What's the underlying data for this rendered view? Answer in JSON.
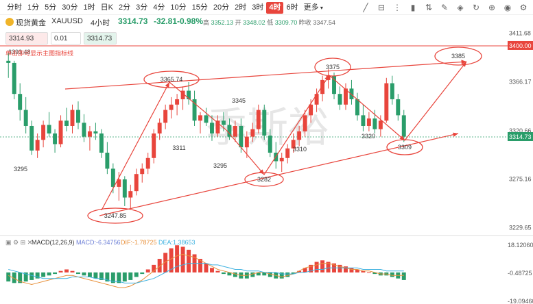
{
  "toolbar": {
    "timeframes": [
      "分时",
      "1分",
      "5分",
      "30分",
      "1时",
      "日K",
      "2分",
      "3分",
      "4分",
      "10分",
      "15分",
      "20分",
      "2时",
      "3时",
      "4时",
      "6时",
      "更多"
    ],
    "active_timeframe": "4时",
    "tools": [
      "trend-line-icon",
      "ruler-icon",
      "dotted-grid-icon",
      "candle-icon",
      "sort-icon",
      "pen-icon",
      "eraser-icon",
      "redo-icon",
      "crosshair-icon",
      "eye-icon",
      "settings-icon"
    ]
  },
  "instrument": {
    "name": "现货黄金",
    "symbol": "XAUUSD",
    "timeframe": "4小时",
    "last": "3314.73",
    "change": "-32.81",
    "change_pct": "-0.98%",
    "high_label": "高",
    "high": "3352.13",
    "open_label": "开",
    "open": "3348.02",
    "low_label": "低",
    "low": "3309.70",
    "prev_label": "昨收",
    "prev": "3347.54"
  },
  "trade": {
    "sell": "3314.93",
    "qty": "0.01",
    "buy": "3314.73"
  },
  "watermark": "季斯裕",
  "hint": "单击即可显示主图指标线",
  "colors": {
    "up": "#e8453c",
    "down": "#2a9d6a",
    "annot": "#e8453c",
    "macd": "#6d7fd6",
    "dif": "#e8913c",
    "dea": "#3db1e0"
  },
  "chart_data": [
    {
      "type": "candlestick",
      "y_ticks": [
        "3411.68",
        "3366.17",
        "3320.66",
        "3275.16",
        "3229.65"
      ],
      "ylim": [
        3225,
        3416
      ],
      "price_tags": {
        "resistance": "3400.00",
        "last": "3314.73"
      },
      "top_left_label": "3393.48",
      "candles": [
        [
          3386,
          3393,
          3370,
          3384
        ],
        [
          3384,
          3386,
          3350,
          3355
        ],
        [
          3355,
          3365,
          3330,
          3340
        ],
        [
          3340,
          3352,
          3318,
          3325
        ],
        [
          3325,
          3330,
          3298,
          3302
        ],
        [
          3302,
          3318,
          3295,
          3312
        ],
        [
          3312,
          3330,
          3305,
          3326
        ],
        [
          3326,
          3338,
          3315,
          3318
        ],
        [
          3318,
          3322,
          3300,
          3308
        ],
        [
          3308,
          3335,
          3305,
          3330
        ],
        [
          3330,
          3342,
          3320,
          3325
        ],
        [
          3325,
          3345,
          3318,
          3340
        ],
        [
          3340,
          3348,
          3322,
          3328
        ],
        [
          3328,
          3336,
          3310,
          3315
        ],
        [
          3315,
          3325,
          3302,
          3320
        ],
        [
          3320,
          3328,
          3312,
          3318
        ],
        [
          3318,
          3322,
          3295,
          3300
        ],
        [
          3300,
          3310,
          3280,
          3285
        ],
        [
          3285,
          3290,
          3262,
          3268
        ],
        [
          3268,
          3282,
          3255,
          3275
        ],
        [
          3275,
          3278,
          3250,
          3258
        ],
        [
          3258,
          3270,
          3248,
          3264
        ],
        [
          3264,
          3285,
          3260,
          3280
        ],
        [
          3280,
          3290,
          3272,
          3285
        ],
        [
          3285,
          3300,
          3280,
          3295
        ],
        [
          3295,
          3322,
          3290,
          3318
        ],
        [
          3318,
          3332,
          3312,
          3328
        ],
        [
          3328,
          3345,
          3322,
          3340
        ],
        [
          3340,
          3352,
          3332,
          3345
        ],
        [
          3345,
          3355,
          3335,
          3350
        ],
        [
          3350,
          3362,
          3340,
          3358
        ],
        [
          3358,
          3366,
          3345,
          3350
        ],
        [
          3350,
          3358,
          3325,
          3330
        ],
        [
          3330,
          3338,
          3318,
          3335
        ],
        [
          3335,
          3342,
          3325,
          3328
        ],
        [
          3328,
          3335,
          3311,
          3318
        ],
        [
          3318,
          3335,
          3315,
          3330
        ],
        [
          3330,
          3338,
          3320,
          3326
        ],
        [
          3326,
          3332,
          3312,
          3315
        ],
        [
          3315,
          3330,
          3310,
          3325
        ],
        [
          3325,
          3332,
          3300,
          3305
        ],
        [
          3305,
          3320,
          3295,
          3315
        ],
        [
          3315,
          3328,
          3310,
          3322
        ],
        [
          3322,
          3345,
          3318,
          3340
        ],
        [
          3340,
          3345,
          3312,
          3316
        ],
        [
          3316,
          3322,
          3296,
          3300
        ],
        [
          3300,
          3310,
          3285,
          3292
        ],
        [
          3292,
          3300,
          3282,
          3295
        ],
        [
          3295,
          3308,
          3290,
          3304
        ],
        [
          3304,
          3318,
          3300,
          3312
        ],
        [
          3312,
          3325,
          3306,
          3320
        ],
        [
          3320,
          3340,
          3315,
          3335
        ],
        [
          3335,
          3350,
          3328,
          3345
        ],
        [
          3345,
          3360,
          3338,
          3355
        ],
        [
          3355,
          3372,
          3348,
          3368
        ],
        [
          3368,
          3378,
          3360,
          3372
        ],
        [
          3372,
          3375,
          3350,
          3355
        ],
        [
          3355,
          3362,
          3340,
          3345
        ],
        [
          3345,
          3365,
          3340,
          3360
        ],
        [
          3360,
          3368,
          3345,
          3350
        ],
        [
          3350,
          3356,
          3330,
          3335
        ],
        [
          3335,
          3345,
          3320,
          3325
        ],
        [
          3325,
          3338,
          3320,
          3332
        ],
        [
          3332,
          3340,
          3318,
          3322
        ],
        [
          3322,
          3335,
          3315,
          3330
        ],
        [
          3330,
          3370,
          3328,
          3365
        ],
        [
          3365,
          3372,
          3345,
          3350
        ],
        [
          3350,
          3355,
          3330,
          3335
        ],
        [
          3335,
          3340,
          3310,
          3315
        ]
      ],
      "annotations": [
        {
          "text": "3365.74",
          "kind": "ellipse"
        },
        {
          "text": "3375",
          "kind": "ellipse"
        },
        {
          "text": "3385",
          "kind": "ellipse"
        },
        {
          "text": "3247.85",
          "kind": "ellipse"
        },
        {
          "text": "3282",
          "kind": "ellipse"
        },
        {
          "text": "3309",
          "kind": "ellipse"
        },
        {
          "text": "3345",
          "kind": "label"
        },
        {
          "text": "3311",
          "kind": "label"
        },
        {
          "text": "3295",
          "kind": "label"
        },
        {
          "text": "3295",
          "kind": "label"
        },
        {
          "text": "3310",
          "kind": "label"
        },
        {
          "text": "3320",
          "kind": "label"
        }
      ]
    },
    {
      "type": "bar",
      "indicator": "MACD(12,26,9)",
      "macd_label": "MACD:",
      "macd_value": "-6.34756",
      "dif_label": "DIF:",
      "dif_value": "-1.78725",
      "dea_label": "DEA:",
      "dea_value": "1.38653",
      "y_ticks": [
        "18.12060",
        "-0.48725",
        "-19.09460"
      ],
      "ylim": [
        -19.1,
        18.1
      ],
      "macd": [
        -6,
        -7,
        -7,
        -6,
        -5,
        -4,
        -3,
        -2,
        -1,
        1,
        2,
        1,
        -1,
        -2,
        -3,
        -4,
        -5,
        -6,
        -7,
        -7,
        -6,
        -5,
        -3,
        -1,
        2,
        5,
        9,
        13,
        16,
        18,
        17,
        15,
        12,
        9,
        6,
        3,
        1,
        -1,
        -2,
        -3,
        -4,
        -4,
        -3,
        -2,
        -2,
        -3,
        -4,
        -4,
        -3,
        -1,
        1,
        3,
        5,
        7,
        8,
        7,
        6,
        5,
        4,
        3,
        2,
        1,
        0,
        -1,
        -2,
        -2,
        -3,
        -4,
        -5
      ],
      "dif": [
        -2,
        -4,
        -6,
        -7,
        -8,
        -7,
        -6,
        -5,
        -4,
        -3,
        -2,
        -2,
        -3,
        -4,
        -5,
        -6,
        -7,
        -8,
        -9,
        -10,
        -10,
        -9,
        -7,
        -5,
        -2,
        1,
        4,
        7,
        9,
        11,
        12,
        11,
        10,
        8,
        6,
        4,
        2,
        1,
        0,
        -1,
        -2,
        -2,
        -1,
        0,
        0,
        -1,
        -2,
        -3,
        -2,
        -1,
        1,
        3,
        4,
        5,
        6,
        6,
        5,
        4,
        3,
        2,
        2,
        1,
        1,
        0,
        -1,
        -1,
        -2,
        -2,
        -2
      ],
      "dea": [
        2,
        1,
        0,
        -1,
        -2,
        -3,
        -4,
        -4,
        -4,
        -4,
        -4,
        -3,
        -3,
        -3,
        -3,
        -4,
        -4,
        -5,
        -6,
        -6,
        -7,
        -7,
        -7,
        -6,
        -5,
        -4,
        -2,
        0,
        2,
        4,
        5,
        6,
        6,
        6,
        6,
        5,
        5,
        4,
        3,
        2,
        2,
        1,
        1,
        1,
        0,
        0,
        0,
        -1,
        -1,
        -1,
        0,
        0,
        1,
        2,
        2,
        3,
        3,
        3,
        3,
        3,
        3,
        2,
        2,
        2,
        2,
        1,
        1,
        1,
        1
      ]
    }
  ]
}
